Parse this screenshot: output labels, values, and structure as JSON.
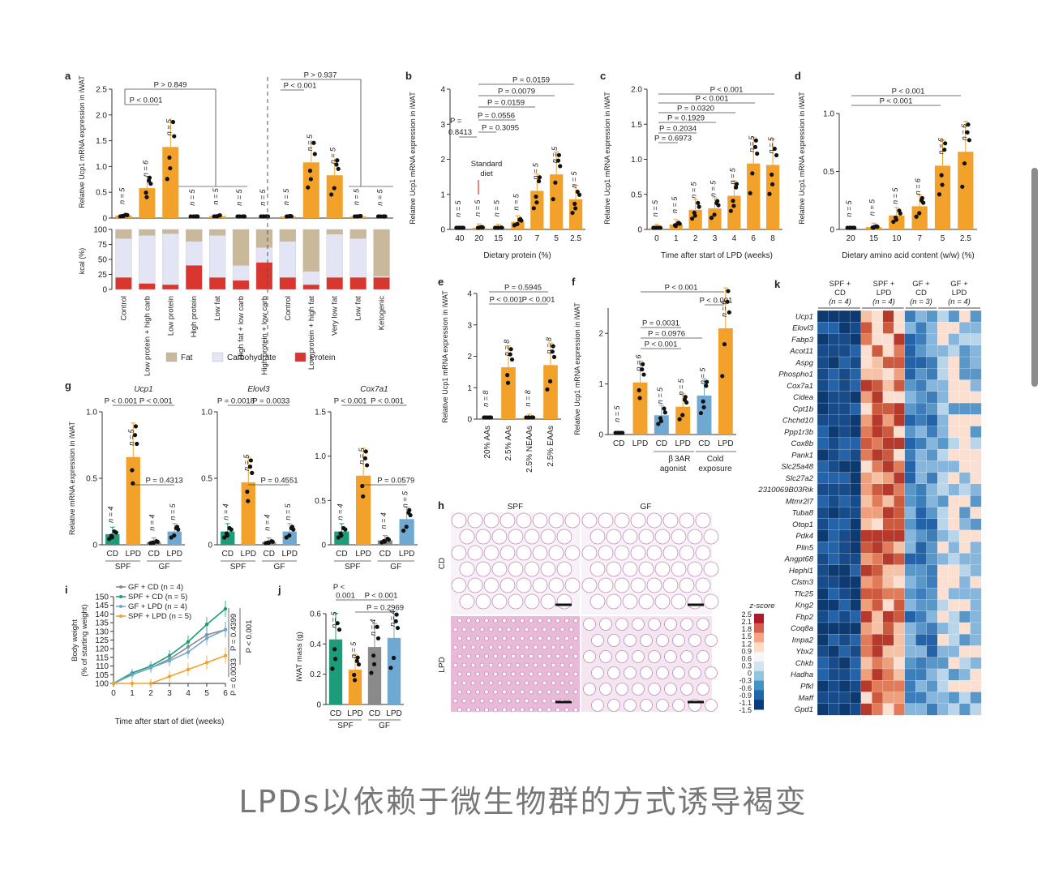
{
  "caption": "LPDs以依赖于微生物群的方式诱导褐变",
  "colors": {
    "orange": "#f2a22a",
    "teal": "#1c9c78",
    "blue": "#6fa8d0",
    "grey": "#8a8a8a",
    "fat": "#c9b89a",
    "carb": "#e4e5f4",
    "protein": "#d93630"
  },
  "panels": {
    "a": "a",
    "b": "b",
    "c": "c",
    "d": "d",
    "e": "e",
    "f": "f",
    "g": "g",
    "h": "h",
    "i": "i",
    "j": "j",
    "k": "k"
  },
  "common": {
    "ylabel_iwat": "Relative Ucp1 mRNA expression in iWAT",
    "ylabel_g": "Relative mRNA expression in iWAT",
    "n5": "n = 5",
    "n6": "n = 6",
    "n8": "n = 8",
    "n4": "n = 4",
    "n3": "n = 3"
  },
  "chart_data": [
    {
      "panel": "a",
      "type": "bar",
      "ylabel": "Relative Ucp1 mRNA expression in iWAT",
      "ylim": [
        0,
        2.5
      ],
      "yticks": [
        "0",
        "0.5",
        "1.0",
        "1.5",
        "2.0",
        "2.5"
      ],
      "categories": [
        "Control",
        "Low protein + high carb",
        "Low protein",
        "High protein",
        "Low fat",
        "High fat + low carb",
        "High protein + low carb",
        "Control",
        "Low protein + high fat",
        "Very low fat",
        "Low fat",
        "Ketogenic"
      ],
      "values": [
        0.05,
        0.58,
        1.38,
        0.02,
        0.04,
        0.02,
        0.02,
        0.03,
        1.08,
        0.83,
        0.03,
        0.02
      ],
      "n_labels": [
        "n = 5",
        "n = 6",
        "n = 5",
        "n = 5",
        "n = 5",
        "n = 5",
        "n = 5",
        "n = 5",
        "n = 5",
        "n = 5",
        "n = 5",
        "n = 5"
      ],
      "stats": [
        "P < 0.001",
        "P > 0.849",
        "P < 0.001",
        "P > 0.937"
      ],
      "kcal_ylabel": "kcal (%)",
      "kcal_yticks": [
        "0",
        "25",
        "50",
        "75",
        "100"
      ],
      "kcal": {
        "protein": [
          20,
          10,
          8,
          40,
          20,
          15,
          45,
          20,
          8,
          20,
          20,
          20
        ],
        "carbohydrate": [
          65,
          80,
          85,
          40,
          70,
          25,
          25,
          60,
          22,
          72,
          65,
          2
        ],
        "fat": [
          15,
          10,
          7,
          20,
          10,
          60,
          30,
          20,
          70,
          8,
          15,
          78
        ]
      },
      "legend": [
        "Fat",
        "Carbohydrate",
        "Protein"
      ]
    },
    {
      "panel": "b",
      "type": "bar",
      "ylabel": "Relative Ucp1 mRNA expression in iWAT",
      "xlabel": "Dietary protein (%)",
      "ylim": [
        0,
        4
      ],
      "yticks": [
        "0",
        "1",
        "2",
        "3",
        "4"
      ],
      "categories": [
        "40",
        "20",
        "15",
        "10",
        "7",
        "5",
        "2.5"
      ],
      "values": [
        0.03,
        0.05,
        0.04,
        0.22,
        1.1,
        1.57,
        0.86
      ],
      "n_labels": [
        "n = 5",
        "n = 5",
        "n = 5",
        "n = 5",
        "n = 5",
        "n = 5",
        "n = 5"
      ],
      "stats": [
        "P = 0.0159",
        "P = 0.0079",
        "P = 0.0159",
        "P = 0.0556",
        "P = 0.3095",
        "P = 0.8413"
      ],
      "annotation": "Standard diet"
    },
    {
      "panel": "c",
      "type": "bar",
      "ylabel": "Relative Ucp1 mRNA expression in iWAT",
      "xlabel": "Time after start of LPD (weeks)",
      "ylim": [
        0,
        2.0
      ],
      "yticks": [
        "0",
        "0.5",
        "1.0",
        "1.5",
        "2.0"
      ],
      "categories": [
        "0",
        "1",
        "2",
        "3",
        "4",
        "6",
        "8"
      ],
      "values": [
        0.02,
        0.07,
        0.28,
        0.3,
        0.48,
        0.94,
        0.92
      ],
      "n_labels": [
        "n = 5",
        "n = 5",
        "n = 5",
        "n = 5",
        "n = 5",
        "n = 5",
        "n = 5"
      ],
      "stats": [
        "P < 0.001",
        "P < 0.001",
        "P = 0.0320",
        "P = 0.1929",
        "P = 0.2034",
        "P = 0.6973"
      ]
    },
    {
      "panel": "d",
      "type": "bar",
      "ylabel": "Relative Ucp1 mRNA expression in iWAT",
      "xlabel": "Dietary amino acid content (w/w) (%)",
      "ylim": [
        0,
        1.0
      ],
      "yticks": [
        "0",
        "0.5",
        "1.0"
      ],
      "categories": [
        "20",
        "15",
        "10",
        "7",
        "5",
        "2.5"
      ],
      "values": [
        0.01,
        0.02,
        0.12,
        0.2,
        0.55,
        0.67
      ],
      "n_labels": [
        "n = 5",
        "n = 5",
        "n = 5",
        "n = 6",
        "n = 6",
        "n = 6"
      ],
      "stats": [
        "P < 0.001",
        "P < 0.001"
      ]
    },
    {
      "panel": "e",
      "type": "bar",
      "ylabel": "Relative Ucp1 mRNA expression in iWAT",
      "ylim": [
        0,
        4
      ],
      "yticks": [
        "0",
        "1",
        "2",
        "3",
        "4"
      ],
      "categories": [
        "20% AAs",
        "2.5% AAs",
        "2.5% NEAAs",
        "2.5% EAAs"
      ],
      "values": [
        0.03,
        1.65,
        0.04,
        1.72
      ],
      "n_labels": [
        "n = 8",
        "n = 8",
        "n = 8",
        "n = 8"
      ],
      "stats": [
        "P = 0.5945",
        "P < 0.001",
        "P < 0.001"
      ]
    },
    {
      "panel": "f",
      "type": "bar",
      "ylabel": "Relative Ucp1 mRNA expression in iWAT",
      "ylim": [
        0,
        2.5
      ],
      "yticks": [
        "0",
        "1",
        "2"
      ],
      "categories": [
        "CD",
        "LPD",
        "CD",
        "LPD",
        "CD",
        "LPD"
      ],
      "groups": [
        "",
        "β3AR agonist",
        "Cold exposure"
      ],
      "values": [
        0.02,
        1.03,
        0.38,
        0.55,
        0.77,
        2.1
      ],
      "n_labels": [
        "n = 5",
        "n = 6",
        "n = 5",
        "n = 5",
        "n = 5",
        "n = 6"
      ],
      "stats": [
        "P < 0.001",
        "P < 0.001",
        "P = 0.0031",
        "P = 0.0976",
        "P < 0.001"
      ]
    },
    {
      "panel": "g",
      "type": "bar",
      "ylabel": "Relative mRNA expression in iWAT",
      "subplots": [
        {
          "title": "Ucp1",
          "yticks": [
            "0",
            "0.5",
            "1.0"
          ],
          "ylim": [
            0,
            1.0
          ],
          "values": [
            0.08,
            0.66,
            0.02,
            0.1
          ],
          "stats": [
            "P < 0.001",
            "P < 0.001",
            "P = 0.4313"
          ]
        },
        {
          "title": "Elovl3",
          "yticks": [
            "0",
            "0.5",
            "1.0"
          ],
          "ylim": [
            0,
            1.0
          ],
          "values": [
            0.1,
            0.47,
            0.02,
            0.1
          ],
          "stats": [
            "P = 0.0018",
            "P = 0.0033",
            "P = 0.4551"
          ]
        },
        {
          "title": "Cox7a1",
          "yticks": [
            "0",
            "0.5",
            "1.0",
            "1.5"
          ],
          "ylim": [
            0,
            1.5
          ],
          "values": [
            0.15,
            0.78,
            0.05,
            0.29
          ],
          "stats": [
            "P < 0.001",
            "P < 0.001",
            "P = 0.0579"
          ]
        }
      ],
      "categories": [
        "CD",
        "LPD",
        "CD",
        "LPD"
      ],
      "groups": [
        "SPF",
        "GF"
      ],
      "n_labels": [
        "n = 4",
        "n = 5",
        "n = 4",
        "n = 5"
      ]
    },
    {
      "panel": "h",
      "type": "image",
      "columns": [
        "SPF",
        "GF"
      ],
      "rows": [
        "CD",
        "LPD"
      ]
    },
    {
      "panel": "i",
      "type": "line",
      "ylabel": "Body weight (% of starting weight)",
      "xlabel": "Time after start of diet (weeks)",
      "ylim": [
        100,
        150
      ],
      "yticks": [
        "100",
        "105",
        "110",
        "115",
        "120",
        "125",
        "130",
        "135",
        "140",
        "145",
        "150"
      ],
      "x": [
        0,
        1,
        2,
        3,
        4,
        5,
        6
      ],
      "xticks": [
        "0",
        "1",
        "2",
        "3",
        "4",
        "5",
        "6"
      ],
      "series": [
        {
          "name": "GF + CD (n = 4)",
          "color": "#8a8a8a",
          "values": [
            100,
            105,
            109,
            114,
            121,
            128,
            131
          ]
        },
        {
          "name": "SPF + CD (n = 5)",
          "color": "#1c9c78",
          "values": [
            100,
            106,
            110,
            116,
            124,
            134,
            143
          ]
        },
        {
          "name": "GF + LPD (n = 4)",
          "color": "#6fa8d0",
          "values": [
            100,
            105,
            109,
            113,
            118,
            126,
            131
          ]
        },
        {
          "name": "SPF + LPD (n = 5)",
          "color": "#f2a22a",
          "values": [
            100,
            100,
            100,
            104,
            108,
            112,
            116
          ]
        }
      ],
      "stats": [
        "P = 0.4399",
        "P = 0.0033",
        "P < 0.001"
      ]
    },
    {
      "panel": "j",
      "type": "bar",
      "ylabel": "iWAT mass (g)",
      "ylim": [
        0,
        0.6
      ],
      "yticks": [
        "0",
        "0.2",
        "0.4",
        "0.6"
      ],
      "categories": [
        "CD",
        "LPD",
        "CD",
        "LPD"
      ],
      "groups": [
        "SPF",
        "GF"
      ],
      "values": [
        0.43,
        0.23,
        0.38,
        0.44
      ],
      "n_labels": [
        "n = 5",
        "n = 5",
        "n = 4",
        "n = 4"
      ],
      "stats": [
        "P < 0.001",
        "P < 0.001",
        "P = 0.2969"
      ]
    },
    {
      "panel": "k",
      "type": "heatmap",
      "columns": [
        "SPF + CD (n = 4)",
        "SPF + LPD (n = 4)",
        "GF + CD (n = 3)",
        "GF + LPD (n = 4)"
      ],
      "genes": [
        "Ucp1",
        "Elovl3",
        "Fabp3",
        "Acot11",
        "Aspg",
        "Phospho1",
        "Cox7a1",
        "Cidea",
        "Cpt1b",
        "Chchd10",
        "Ppp1r3b",
        "Cox8b",
        "Pank1",
        "Slc25a48",
        "Slc27a2",
        "2310069B03Rik",
        "Mtmr2l7",
        "Tuba8",
        "Otop1",
        "Pdk4",
        "Plin5",
        "Angpt68",
        "Hephl1",
        "Clstn3",
        "Tfc25",
        "Kng2",
        "Fbp2",
        "Coq8a",
        "Impa2",
        "Ybx2",
        "Chkb",
        "Hadha",
        "Pfkl",
        "Maff",
        "Gpd1"
      ],
      "legend_title": "z-score",
      "scale": [
        "2.5",
        "2.1",
        "1.8",
        "1.5",
        "1.2",
        "0.9",
        "0.6",
        "0.3",
        "0",
        "-0.3",
        "-0.6",
        "-0.9",
        "-1.1",
        "-1.5"
      ]
    }
  ]
}
